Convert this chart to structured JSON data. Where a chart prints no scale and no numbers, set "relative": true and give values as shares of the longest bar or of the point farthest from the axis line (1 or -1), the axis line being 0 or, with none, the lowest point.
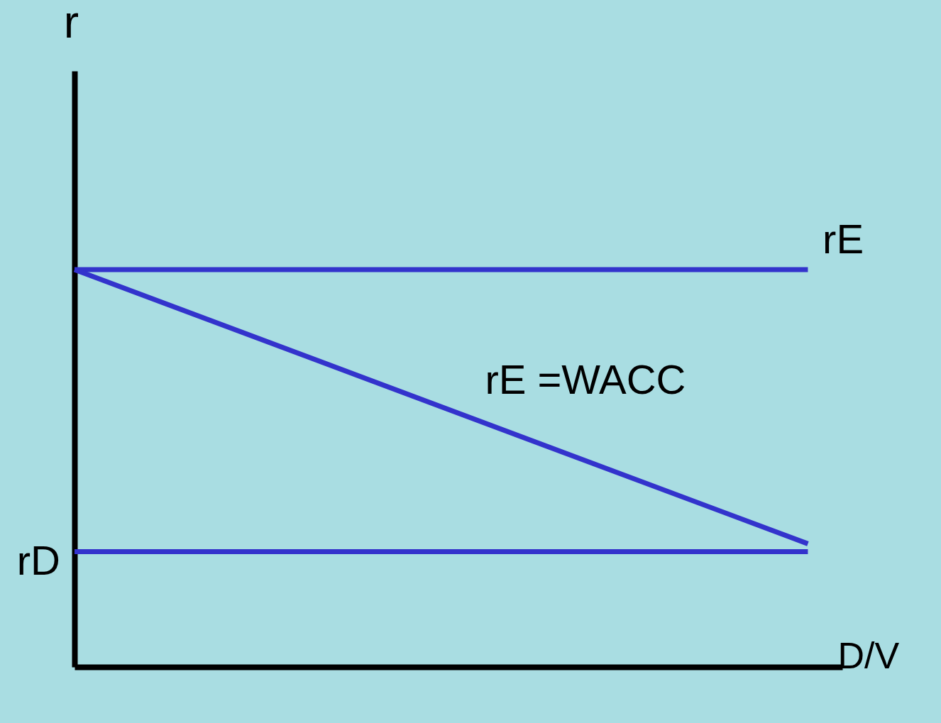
{
  "chart_data": {
    "type": "line",
    "relative": true,
    "ylabel": "r",
    "xlabel": "D/V",
    "categories": [
      null,
      null
    ],
    "grid": false,
    "marker": "none",
    "line_style": "solid",
    "series": [
      {
        "name": "rE",
        "color": "#3333cc",
        "values": [
          1,
          1
        ]
      },
      {
        "name": "rE =WACC",
        "color": "#3333cc",
        "values": [
          1,
          0.31
        ]
      },
      {
        "name": "rD",
        "color": "#3333cc",
        "values": [
          0.29,
          0.29
        ]
      }
    ]
  }
}
